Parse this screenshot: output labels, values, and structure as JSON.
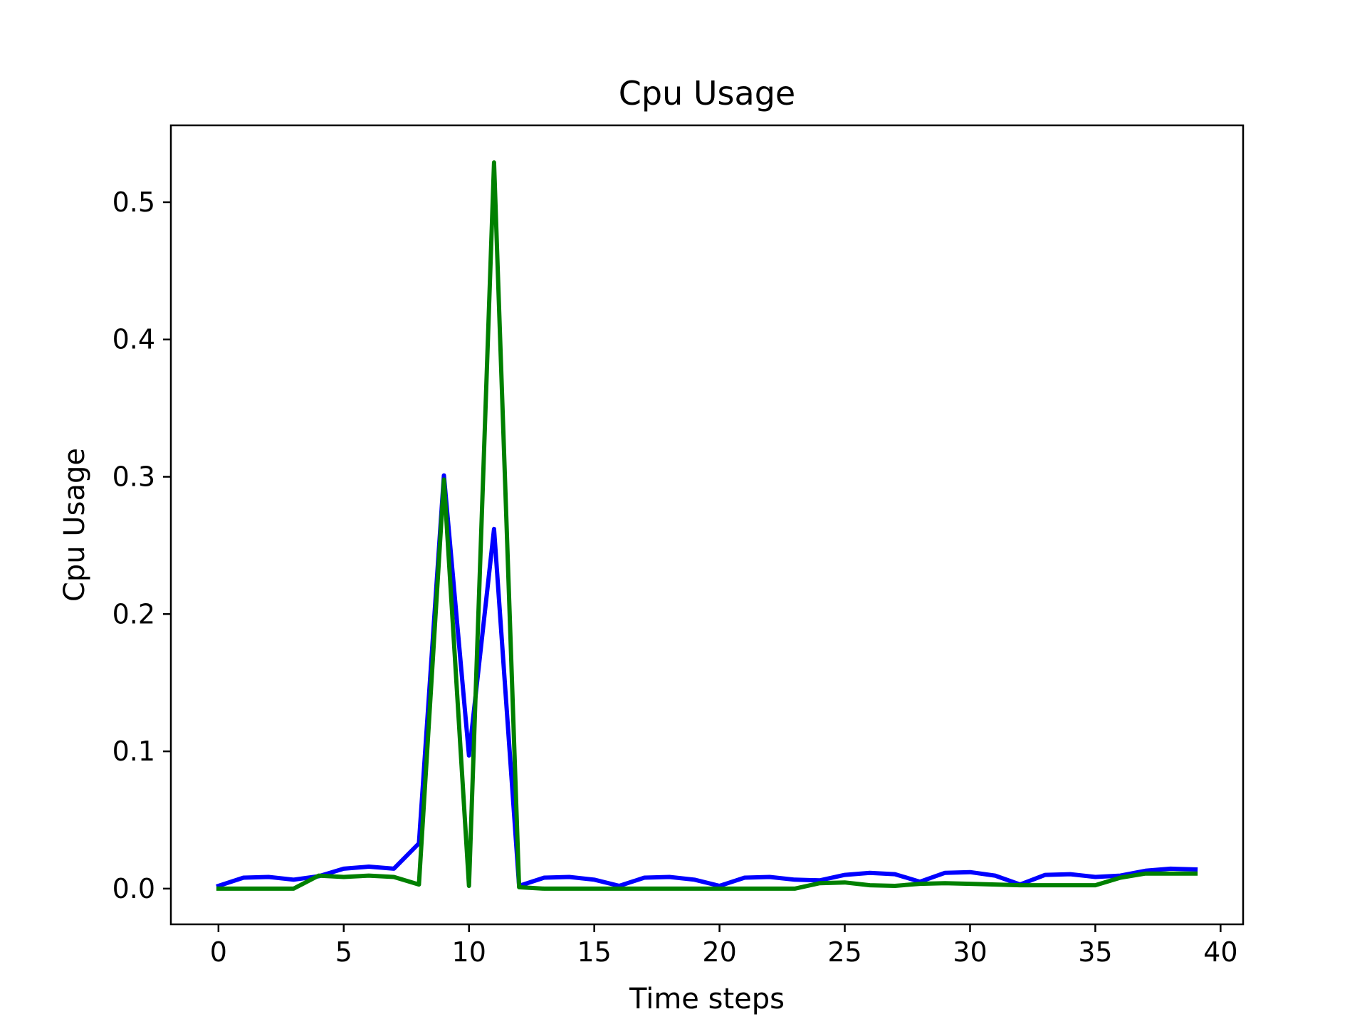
{
  "chart_data": {
    "type": "line",
    "title": "Cpu Usage",
    "xlabel": "Time steps",
    "ylabel": "Cpu Usage",
    "xlim": [
      -1.9,
      40.9
    ],
    "ylim": [
      -0.026,
      0.556
    ],
    "xticks": [
      0,
      5,
      10,
      15,
      20,
      25,
      30,
      35,
      40
    ],
    "yticks": [
      0.0,
      0.1,
      0.2,
      0.3,
      0.4,
      0.5
    ],
    "xtick_labels": [
      "0",
      "5",
      "10",
      "15",
      "20",
      "25",
      "30",
      "35",
      "40"
    ],
    "ytick_labels": [
      "0.0",
      "0.1",
      "0.2",
      "0.3",
      "0.4",
      "0.5"
    ],
    "grid": false,
    "legend": null,
    "x": [
      0,
      1,
      2,
      3,
      4,
      5,
      6,
      7,
      8,
      9,
      10,
      11,
      12,
      13,
      14,
      15,
      16,
      17,
      18,
      19,
      20,
      21,
      22,
      23,
      24,
      25,
      26,
      27,
      28,
      29,
      30,
      31,
      32,
      33,
      34,
      35,
      36,
      37,
      38,
      39
    ],
    "series": [
      {
        "color": "#0000ff",
        "values": [
          0.002,
          0.008,
          0.0085,
          0.0065,
          0.009,
          0.0145,
          0.016,
          0.0145,
          0.033,
          0.301,
          0.097,
          0.262,
          0.002,
          0.008,
          0.0085,
          0.0065,
          0.002,
          0.008,
          0.0085,
          0.0065,
          0.002,
          0.008,
          0.0085,
          0.0065,
          0.006,
          0.01,
          0.0115,
          0.0105,
          0.005,
          0.0115,
          0.012,
          0.0095,
          0.003,
          0.01,
          0.0105,
          0.0085,
          0.0095,
          0.013,
          0.0145,
          0.014
        ]
      },
      {
        "color": "#008000",
        "values": [
          0.0,
          0.0,
          0.0,
          0.0,
          0.0095,
          0.0085,
          0.0095,
          0.0085,
          0.003,
          0.298,
          0.002,
          0.529,
          0.001,
          0.0,
          0.0,
          0.0,
          0.0,
          0.0,
          0.0,
          0.0,
          0.0,
          0.0,
          0.0,
          0.0,
          0.004,
          0.0045,
          0.0025,
          0.002,
          0.0035,
          0.004,
          0.0035,
          0.003,
          0.0025,
          0.0025,
          0.0025,
          0.0025,
          0.008,
          0.011,
          0.011,
          0.011
        ]
      }
    ]
  }
}
